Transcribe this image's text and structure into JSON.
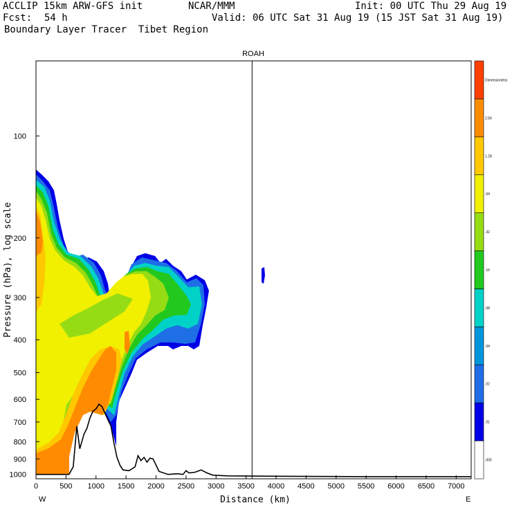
{
  "header": {
    "model": "ACCLIP 15km ARW-GFS init",
    "center": "NCAR/MMM",
    "init": "Init: 00 UTC Thu 29 Aug 19",
    "fcst_label": "Fcst:",
    "fcst_value": "54 h",
    "valid": "Valid: 06 UTC Sat 31 Aug 19 (15 JST Sat 31 Aug 19)",
    "field": "Boundary Layer Tracer  Tibet Region"
  },
  "chart_data": {
    "type": "heatmap",
    "title": "ROAH",
    "xlabel": "Distance (km)",
    "ylabel": "Pressure (hPa), log scale",
    "x_range": [
      0,
      7250
    ],
    "y_range": [
      1030,
      60
    ],
    "y_scale": "log",
    "x_ticks": [
      0,
      500,
      1000,
      1500,
      2000,
      2500,
      3000,
      3500,
      4000,
      4500,
      5000,
      5500,
      6000,
      6500,
      7000
    ],
    "y_ticks": [
      100,
      200,
      300,
      400,
      500,
      600,
      700,
      800,
      900,
      1000
    ],
    "x_left_label": "W",
    "x_right_label": "E",
    "marker_line_x": 3600,
    "colorbar": {
      "levels": [
        ".005",
        ".01",
        ".02",
        ".04",
        ".08",
        ".16",
        ".32",
        ".64",
        "1.28",
        "2.56",
        "Dimensionless"
      ],
      "colors": [
        "#ffffff",
        "#0000e6",
        "#1e6ee6",
        "#0096dc",
        "#00d2c8",
        "#23c81e",
        "#96dc14",
        "#f0f000",
        "#ffc800",
        "#ff8c00",
        "#ff4000"
      ]
    },
    "terrain": [
      [
        0,
        1000
      ],
      [
        300,
        1000
      ],
      [
        550,
        1000
      ],
      [
        620,
        950
      ],
      [
        680,
        720
      ],
      [
        730,
        840
      ],
      [
        800,
        760
      ],
      [
        850,
        730
      ],
      [
        900,
        680
      ],
      [
        950,
        650
      ],
      [
        1000,
        640
      ],
      [
        1050,
        620
      ],
      [
        1100,
        630
      ],
      [
        1150,
        660
      ],
      [
        1200,
        690
      ],
      [
        1250,
        720
      ],
      [
        1300,
        810
      ],
      [
        1350,
        890
      ],
      [
        1400,
        940
      ],
      [
        1450,
        970
      ],
      [
        1550,
        975
      ],
      [
        1650,
        950
      ],
      [
        1700,
        880
      ],
      [
        1750,
        910
      ],
      [
        1800,
        890
      ],
      [
        1850,
        920
      ],
      [
        1900,
        895
      ],
      [
        1950,
        900
      ],
      [
        2050,
        980
      ],
      [
        2200,
        1000
      ],
      [
        2350,
        995
      ],
      [
        2450,
        1000
      ],
      [
        2500,
        975
      ],
      [
        2550,
        990
      ],
      [
        2650,
        985
      ],
      [
        2750,
        970
      ],
      [
        2850,
        990
      ],
      [
        2950,
        1005
      ],
      [
        3200,
        1010
      ],
      [
        4000,
        1012
      ],
      [
        5500,
        1015
      ],
      [
        7250,
        1015
      ]
    ]
  }
}
